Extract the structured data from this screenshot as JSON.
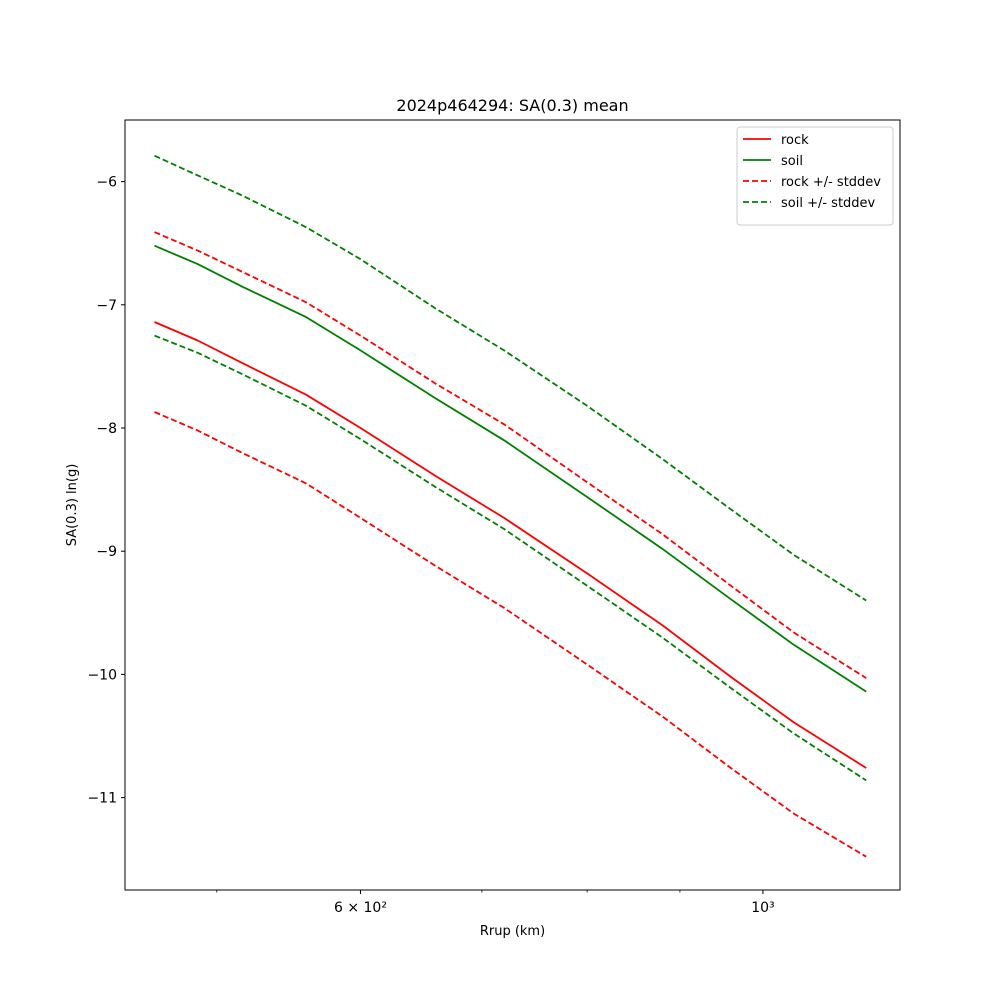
{
  "chart_data": {
    "type": "line",
    "title": "2024p464294: SA(0.3) mean",
    "xlabel": "Rrup (km)",
    "ylabel": "SA(0.3) ln(g)",
    "xscale": "log",
    "xlim": [
      445,
      1190
    ],
    "ylim": [
      -11.75,
      -5.5
    ],
    "xticks": [
      {
        "value": 600,
        "label": "6 × 10²"
      },
      {
        "value": 1000,
        "label": "10³"
      }
    ],
    "yticks": [
      {
        "value": -6,
        "label": "−6"
      },
      {
        "value": -7,
        "label": "−7"
      },
      {
        "value": -8,
        "label": "−8"
      },
      {
        "value": -9,
        "label": "−9"
      },
      {
        "value": -10,
        "label": "−10"
      },
      {
        "value": -11,
        "label": "−11"
      }
    ],
    "x": [
      462,
      488,
      516,
      560,
      600,
      660,
      720,
      800,
      880,
      960,
      1040,
      1140
    ],
    "series": [
      {
        "name": "rock",
        "color": "#ff0000",
        "dash": "solid",
        "legend": true,
        "values": [
          -7.14,
          -7.29,
          -7.47,
          -7.73,
          -8.0,
          -8.39,
          -8.73,
          -9.18,
          -9.6,
          -10.02,
          -10.39,
          -10.76
        ]
      },
      {
        "name": "soil",
        "color": "#008000",
        "dash": "solid",
        "legend": true,
        "values": [
          -6.52,
          -6.67,
          -6.85,
          -7.1,
          -7.37,
          -7.76,
          -8.1,
          -8.56,
          -8.98,
          -9.39,
          -9.76,
          -10.14
        ]
      },
      {
        "name": "rock +/- stddev",
        "color": "#ff0000",
        "dash": "dashed",
        "legend": true,
        "values": [
          -6.41,
          -6.56,
          -6.73,
          -6.98,
          -7.25,
          -7.64,
          -7.97,
          -8.44,
          -8.86,
          -9.28,
          -9.66,
          -10.03
        ]
      },
      {
        "name": "rock +/- stddev",
        "color": "#ff0000",
        "dash": "dashed",
        "legend": false,
        "values": [
          -7.87,
          -8.02,
          -8.2,
          -8.45,
          -8.73,
          -9.12,
          -9.46,
          -9.92,
          -10.34,
          -10.76,
          -11.13,
          -11.48
        ]
      },
      {
        "name": "soil +/- stddev",
        "color": "#008000",
        "dash": "dashed",
        "legend": true,
        "values": [
          -5.79,
          -5.95,
          -6.11,
          -6.37,
          -6.63,
          -7.03,
          -7.37,
          -7.82,
          -8.25,
          -8.66,
          -9.03,
          -9.4
        ]
      },
      {
        "name": "soil +/- stddev",
        "color": "#008000",
        "dash": "dashed",
        "legend": false,
        "values": [
          -7.25,
          -7.39,
          -7.56,
          -7.82,
          -8.09,
          -8.48,
          -8.82,
          -9.28,
          -9.7,
          -10.11,
          -10.48,
          -10.86
        ]
      }
    ],
    "legend_position": "top-right",
    "grid": false
  }
}
